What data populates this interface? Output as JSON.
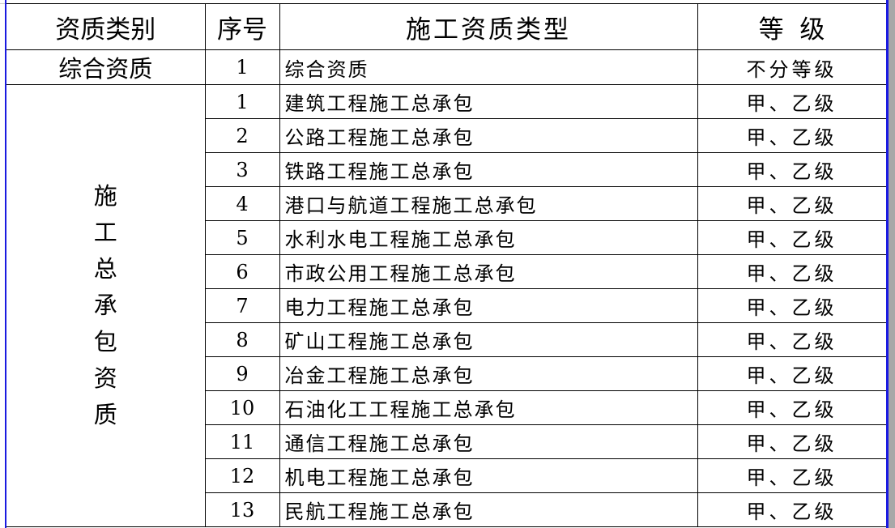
{
  "headers": {
    "category": "资质类别",
    "number": "序号",
    "type": "施工资质类型",
    "grade": "等  级"
  },
  "group1": {
    "category": "综合资质",
    "rows": [
      {
        "no": "1",
        "type": "综合资质",
        "grade": "不分等级"
      }
    ]
  },
  "group2": {
    "category": "施工总承包资质",
    "rows": [
      {
        "no": "1",
        "type": "建筑工程施工总承包",
        "grade": "甲、乙级"
      },
      {
        "no": "2",
        "type": "公路工程施工总承包",
        "grade": "甲、乙级"
      },
      {
        "no": "3",
        "type": "铁路工程施工总承包",
        "grade": "甲、乙级"
      },
      {
        "no": "4",
        "type": "港口与航道工程施工总承包",
        "grade": "甲、乙级"
      },
      {
        "no": "5",
        "type": "水利水电工程施工总承包",
        "grade": "甲、乙级"
      },
      {
        "no": "6",
        "type": "市政公用工程施工总承包",
        "grade": "甲、乙级"
      },
      {
        "no": "7",
        "type": "电力工程施工总承包",
        "grade": "甲、乙级"
      },
      {
        "no": "8",
        "type": "矿山工程施工总承包",
        "grade": "甲、乙级"
      },
      {
        "no": "9",
        "type": "冶金工程施工总承包",
        "grade": "甲、乙级"
      },
      {
        "no": "10",
        "type": "石油化工工程施工总承包",
        "grade": "甲、乙级"
      },
      {
        "no": "11",
        "type": "通信工程施工总承包",
        "grade": "甲、乙级"
      },
      {
        "no": "12",
        "type": "机电工程施工总承包",
        "grade": "甲、乙级"
      },
      {
        "no": "13",
        "type": "民航工程施工总承包",
        "grade": "甲、乙级"
      }
    ]
  }
}
